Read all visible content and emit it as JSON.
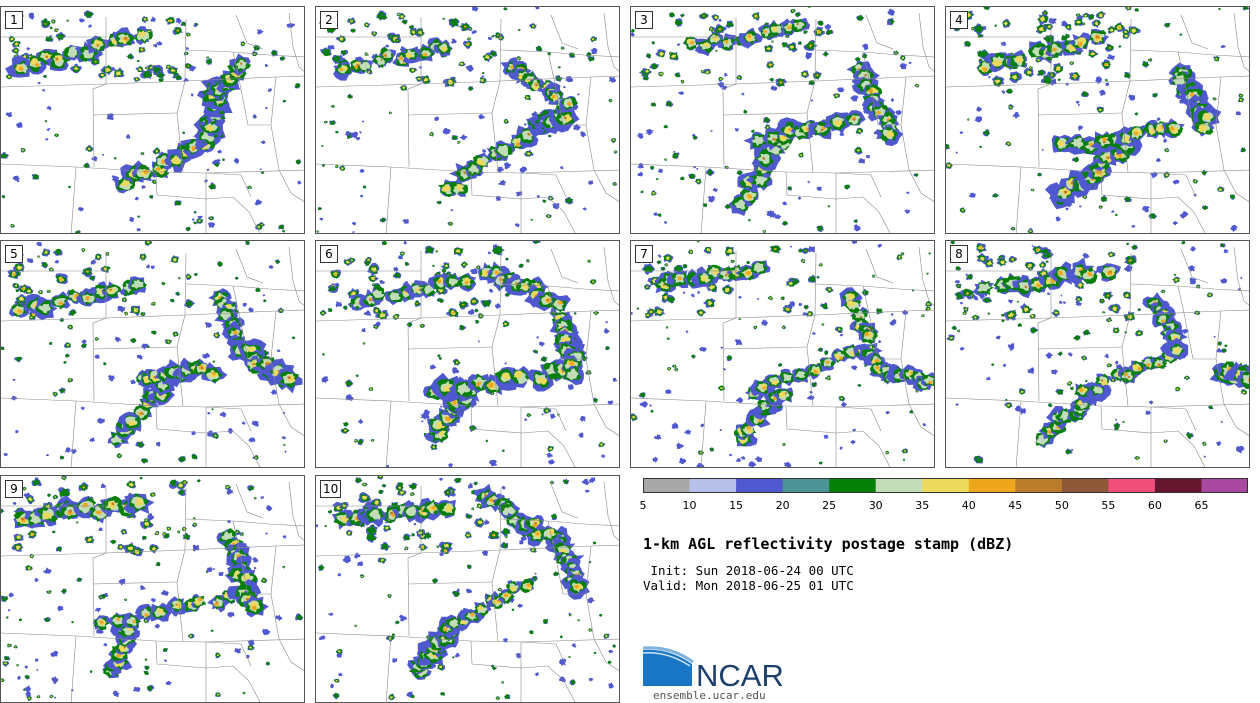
{
  "panels": [
    {
      "label": "1"
    },
    {
      "label": "2"
    },
    {
      "label": "3"
    },
    {
      "label": "4"
    },
    {
      "label": "5"
    },
    {
      "label": "6"
    },
    {
      "label": "7"
    },
    {
      "label": "8"
    },
    {
      "label": "9"
    },
    {
      "label": "10"
    }
  ],
  "colorbar": {
    "colors": [
      "#a8a8a8",
      "#b6c0e8",
      "#5058cf",
      "#4c9396",
      "#067f06",
      "#c2dcb8",
      "#ecd95e",
      "#eea71c",
      "#bb7d2c",
      "#8e5838",
      "#f04f79",
      "#66162f",
      "#a8489e"
    ],
    "tick_labels": [
      "5",
      "10",
      "15",
      "20",
      "25",
      "30",
      "35",
      "40",
      "45",
      "50",
      "55",
      "60",
      "65"
    ]
  },
  "title": "1-km AGL reflectivity postage stamp (dBZ)",
  "init": " Init: Sun 2018-06-24 00 UTC",
  "valid": "Valid: Mon 2018-06-25 01 UTC",
  "logo": {
    "text": "NCAR",
    "url": "ensemble.ucar.edu"
  }
}
